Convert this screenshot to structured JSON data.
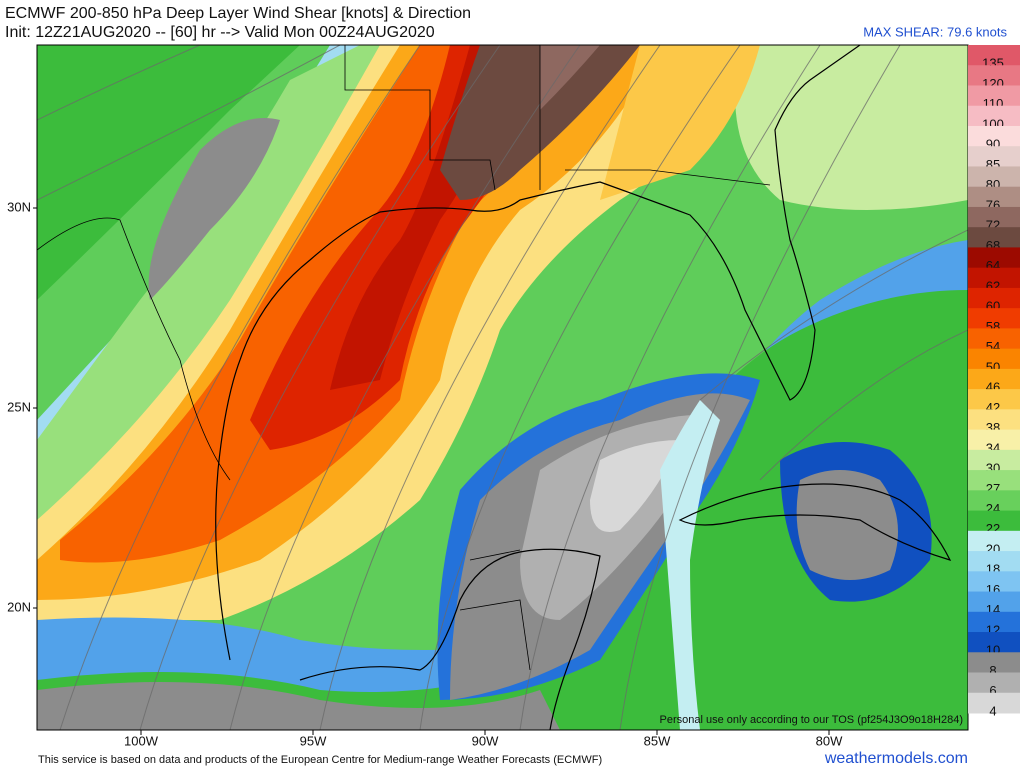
{
  "header": {
    "title": "ECMWF 200-850 hPa Deep Layer Wind Shear [knots] & Direction",
    "init_line": "Init: 12Z21AUG2020 -- [60] hr --> Valid Mon 00Z24AUG2020",
    "max_shear": "MAX SHEAR: 79.6 knots"
  },
  "colorbar": {
    "levels": [
      135,
      120,
      110,
      100,
      90,
      85,
      80,
      76,
      72,
      68,
      64,
      62,
      60,
      58,
      54,
      50,
      46,
      42,
      38,
      34,
      30,
      27,
      24,
      22,
      20,
      18,
      16,
      14,
      12,
      10,
      8,
      6,
      4
    ],
    "colors": [
      "#e05868",
      "#e87884",
      "#f09aa4",
      "#f6bcc4",
      "#fbdcdc",
      "#e6cfcc",
      "#ccb4ac",
      "#ae8e84",
      "#8e6860",
      "#6c4a40",
      "#9c0a00",
      "#c21400",
      "#de2400",
      "#f03c00",
      "#f86200",
      "#fa8400",
      "#fca818",
      "#fcc848",
      "#fce080",
      "#f8f0a8",
      "#c8eca0",
      "#98e07c",
      "#68d05c",
      "#3cbc3c",
      "#c4eef2",
      "#a2dcf2",
      "#7ec4f2",
      "#52a2ea",
      "#2472da",
      "#1050c0",
      "#8c8c8c",
      "#b0b0b0",
      "#d8d8d8"
    ]
  },
  "axes": {
    "longitudes": [
      "100W",
      "95W",
      "90W",
      "85W",
      "80W"
    ],
    "latitudes": [
      "30N",
      "25N",
      "20N"
    ]
  },
  "footer": {
    "attribution": "This service is based on data and products of the European Centre for Medium-range Weather Forecasts (ECMWF)",
    "site": "weathermodels.com",
    "tos": "Personal use only according to our TOS (pf254J3O9o18H284)"
  }
}
